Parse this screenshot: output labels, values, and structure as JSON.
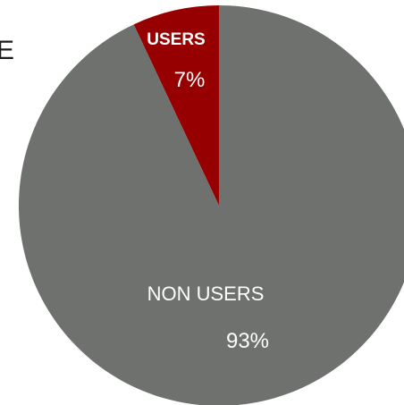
{
  "chart_data": {
    "type": "pie",
    "title": "",
    "slices": [
      {
        "label": "USERS",
        "value": 7,
        "value_label": "7%",
        "color": "#960000"
      },
      {
        "label": "NON USERS",
        "value": 93,
        "value_label": "93%",
        "color": "#6e716e"
      }
    ],
    "start": "12 o'clock",
    "direction": "counter-clockwise"
  },
  "edge_text": {
    "left": "E",
    "right": ","
  }
}
